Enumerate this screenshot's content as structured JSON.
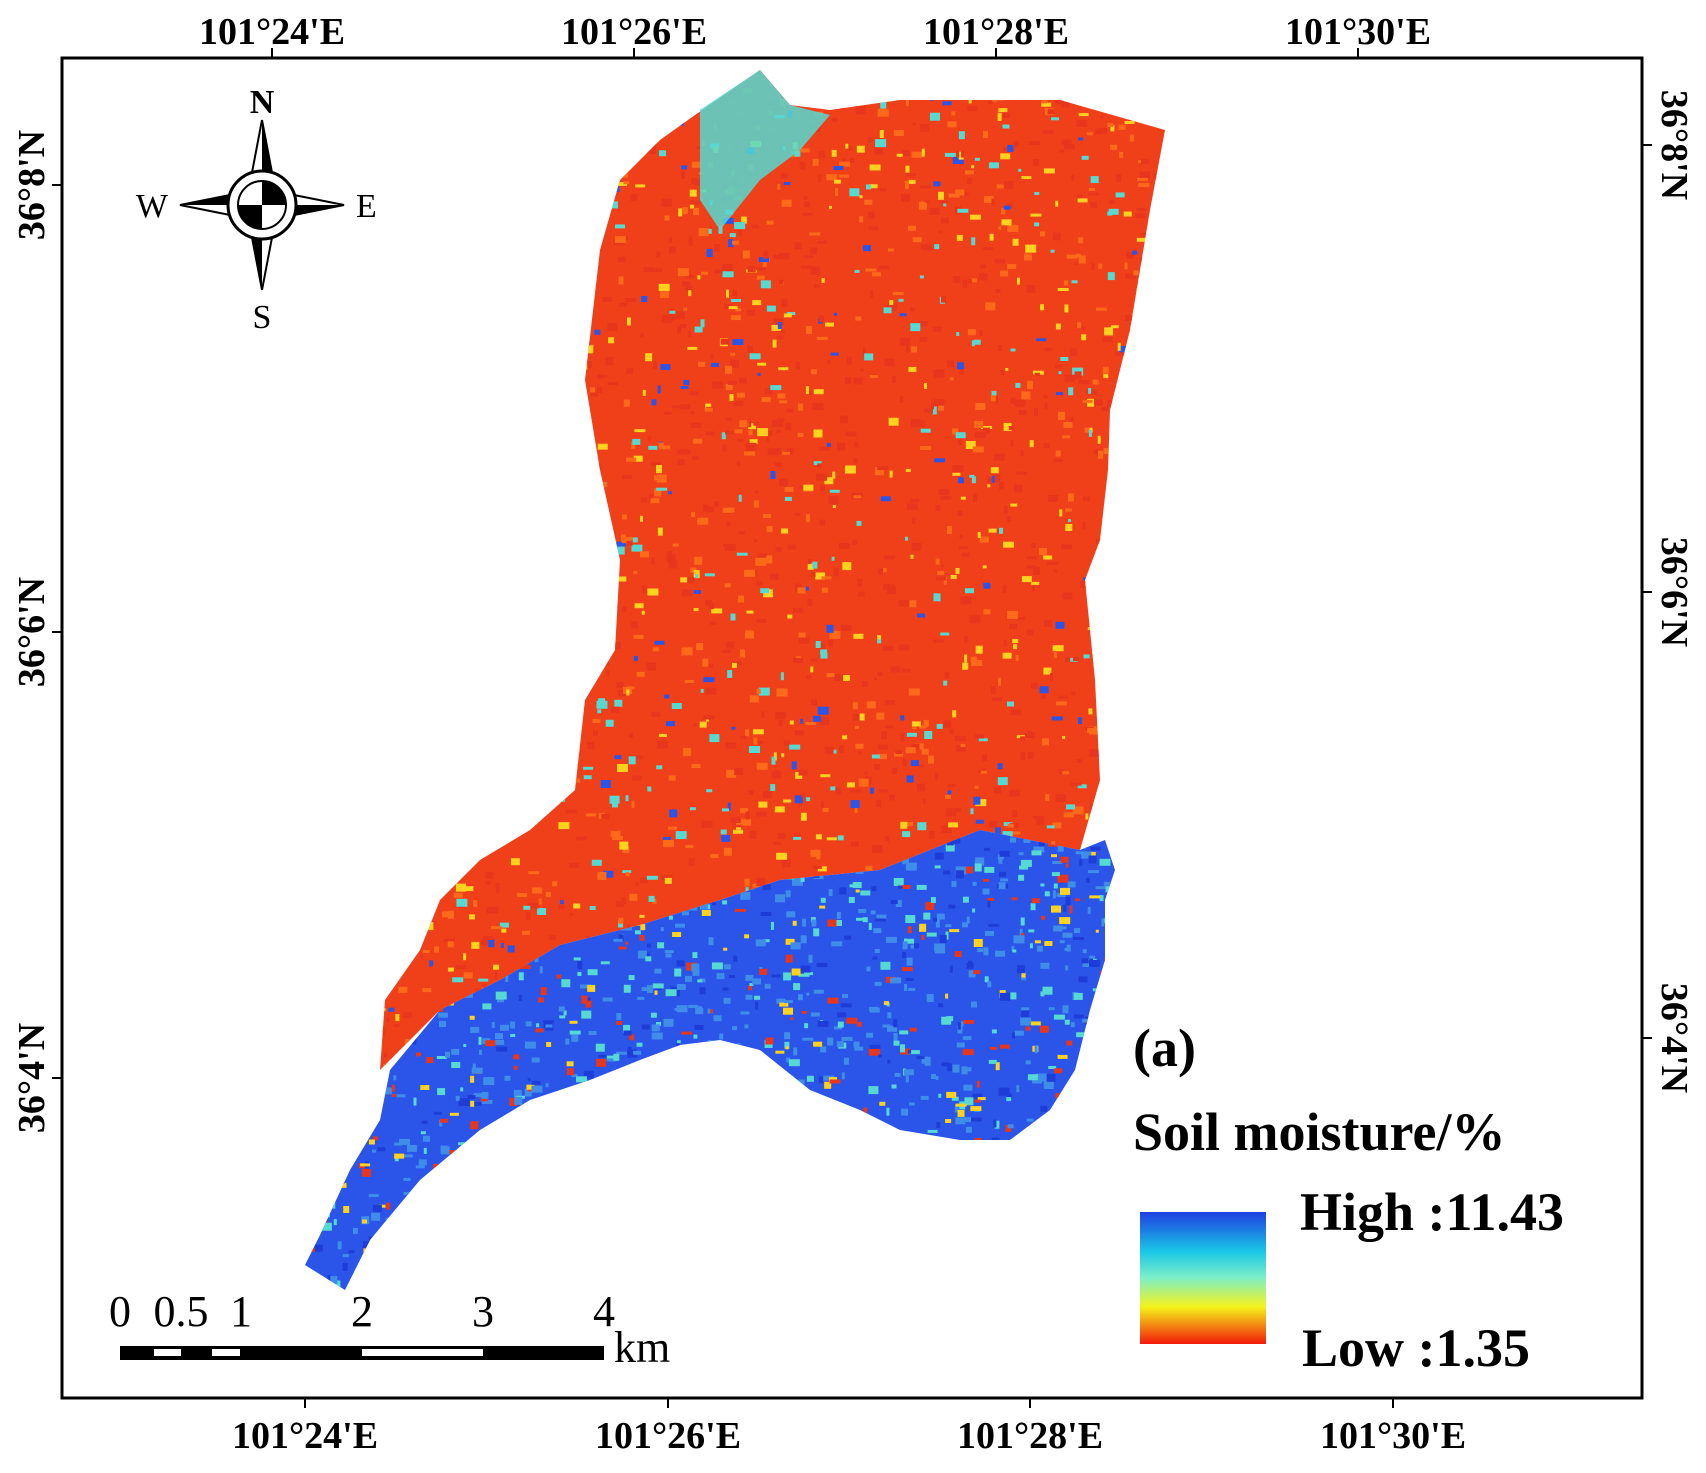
{
  "map": {
    "panel_label": "(a)",
    "top_lon_labels": [
      "101°24'E",
      "101°26'E",
      "101°28'E",
      "101°30'E"
    ],
    "bottom_lon_labels": [
      "101°24'E",
      "101°26'E",
      "101°28'E",
      "101°30'E"
    ],
    "left_lat_labels": [
      "36°8'N",
      "36°6'N",
      "36°4'N"
    ],
    "right_lat_labels": [
      "36°8'N",
      "36°6'N",
      "36°4'N"
    ]
  },
  "compass": {
    "north": "N",
    "south": "S",
    "east": "E",
    "west": "W"
  },
  "scalebar": {
    "ticks": [
      "0",
      "0.5",
      "1",
      "2",
      "3",
      "4"
    ],
    "unit": "km"
  },
  "legend": {
    "title": "Soil moisture/%",
    "high_label": "High :11.43",
    "low_label": "Low :1.35",
    "high_value": 11.43,
    "low_value": 1.35,
    "colors": {
      "high": "#1f3fe0",
      "upper": "#19c7e6",
      "mid": "#7ff0c8",
      "lower": "#f4f21a",
      "low": "#f21a0a"
    }
  },
  "colors": {
    "dry": "#f0401a",
    "dry_alt": "#e8361c",
    "wet": "#2a55e8",
    "wet_alt": "#3f8de8",
    "moist": "#55d9d0",
    "mid": "#ffd21e"
  }
}
